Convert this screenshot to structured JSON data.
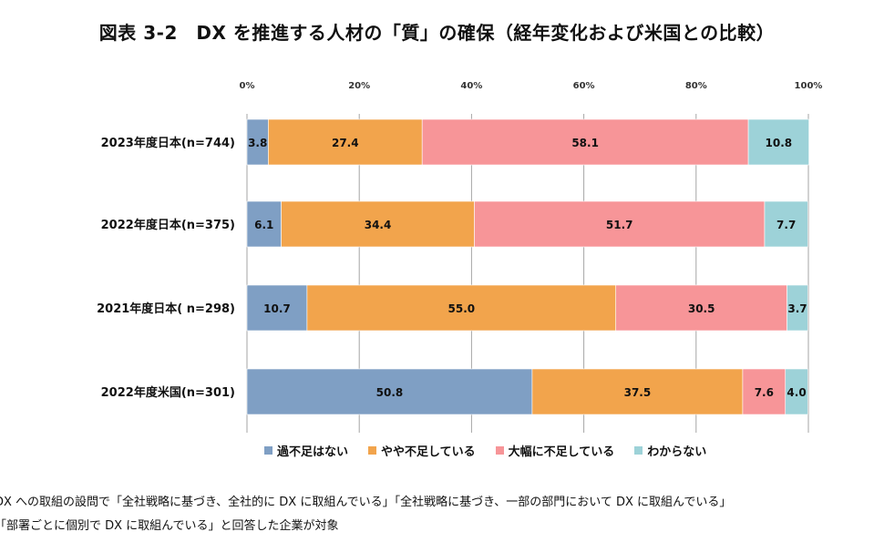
{
  "title": "図表 3-2　DX を推進する人材の「質」の確保（経年変化および米国との比較）",
  "notes": [
    "DX への取組の設問で「全社戦略に基づき、全社的に DX に取組んでいる」「全社戦略に基づき、一部の部門において DX に取組んでいる」",
    "「部署ごとに個別で DX に取組んでいる」と回答した企業が対象"
  ],
  "chart_data": {
    "type": "bar",
    "orientation": "horizontal",
    "stacked": true,
    "title": "図表 3-2　DX を推進する人材の「質」の確保（経年変化および米国との比較）",
    "categories": [
      "2023年度日本(n=744)",
      "2022年度日本(n=375)",
      "2021年度日本( n=298)",
      "2022年度米国(n=301)"
    ],
    "series": [
      {
        "name": "過不足はない",
        "color": "#7f9fc4",
        "values": [
          3.8,
          6.1,
          10.7,
          50.8
        ]
      },
      {
        "name": "やや不足している",
        "color": "#f2a44c",
        "values": [
          27.4,
          34.4,
          55.0,
          37.5
        ]
      },
      {
        "name": "大幅に不足している",
        "color": "#f79598",
        "values": [
          58.1,
          51.7,
          30.5,
          7.6
        ]
      },
      {
        "name": "わからない",
        "color": "#9dd2d8",
        "values": [
          10.8,
          7.7,
          3.7,
          4.0
        ]
      }
    ],
    "xlim": [
      0,
      100
    ],
    "xticks": [
      "0%",
      "20%",
      "40%",
      "60%",
      "80%",
      "100%"
    ],
    "grid": true,
    "legend": "bottom"
  }
}
